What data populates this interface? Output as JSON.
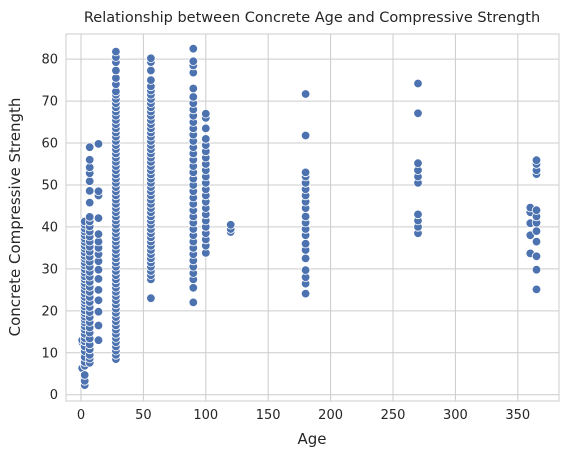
{
  "chart_data": {
    "type": "scatter",
    "title": "Relationship between Concrete Age and Compressive Strength",
    "xlabel": "Age",
    "ylabel": "Concrete Compressive Strength",
    "xlim": [
      -12,
      383
    ],
    "ylim": [
      -1.5,
      86
    ],
    "xticks": [
      0,
      50,
      100,
      150,
      200,
      250,
      300,
      350
    ],
    "yticks": [
      0,
      10,
      20,
      30,
      40,
      50,
      60,
      70,
      80
    ],
    "grid": true,
    "legend": "none",
    "point_color": "#4c72b0",
    "point_edge_color": "#ffffff",
    "background_color": "#ffffff",
    "grid_color": "#cccccc",
    "points": [
      [
        1,
        6.3
      ],
      [
        1,
        12.5
      ],
      [
        1,
        13
      ],
      [
        3,
        2.3
      ],
      [
        3,
        3.3
      ],
      [
        3,
        4.7
      ],
      [
        3,
        6.9
      ],
      [
        3,
        7.8
      ],
      [
        3,
        9.0
      ],
      [
        3,
        10.4
      ],
      [
        3,
        11.5
      ],
      [
        3,
        12.7
      ],
      [
        3,
        13.5
      ],
      [
        3,
        14.5
      ],
      [
        3,
        15.5
      ],
      [
        3,
        16.3
      ],
      [
        3,
        17.2
      ],
      [
        3,
        17.9
      ],
      [
        3,
        18.6
      ],
      [
        3,
        19.4
      ],
      [
        3,
        20.1
      ],
      [
        3,
        21.0
      ],
      [
        3,
        21.8
      ],
      [
        3,
        22.5
      ],
      [
        3,
        23.3
      ],
      [
        3,
        24.1
      ],
      [
        3,
        25.0
      ],
      [
        3,
        25.9
      ],
      [
        3,
        26.6
      ],
      [
        3,
        27.5
      ],
      [
        3,
        28.2
      ],
      [
        3,
        29.1
      ],
      [
        3,
        29.9
      ],
      [
        3,
        30.8
      ],
      [
        3,
        31.5
      ],
      [
        3,
        32.4
      ],
      [
        3,
        33.1
      ],
      [
        3,
        33.9
      ],
      [
        3,
        34.8
      ],
      [
        3,
        35.5
      ],
      [
        3,
        36.4
      ],
      [
        3,
        37.2
      ],
      [
        3,
        38.0
      ],
      [
        3,
        38.9
      ],
      [
        3,
        39.6
      ],
      [
        3,
        40.5
      ],
      [
        3,
        41.3
      ],
      [
        7,
        7.6
      ],
      [
        7,
        8.6
      ],
      [
        7,
        9.5
      ],
      [
        7,
        10.8
      ],
      [
        7,
        12.0
      ],
      [
        7,
        13.4
      ],
      [
        7,
        14.8
      ],
      [
        7,
        16.0
      ],
      [
        7,
        17.3
      ],
      [
        7,
        18.5
      ],
      [
        7,
        19.7
      ],
      [
        7,
        20.9
      ],
      [
        7,
        22.1
      ],
      [
        7,
        23.3
      ],
      [
        7,
        24.5
      ],
      [
        7,
        25.7
      ],
      [
        7,
        26.9
      ],
      [
        7,
        28.1
      ],
      [
        7,
        29.3
      ],
      [
        7,
        30.5
      ],
      [
        7,
        31.7
      ],
      [
        7,
        32.9
      ],
      [
        7,
        34.1
      ],
      [
        7,
        35.3
      ],
      [
        7,
        36.5
      ],
      [
        7,
        37.7
      ],
      [
        7,
        38.9
      ],
      [
        7,
        40.1
      ],
      [
        7,
        41.3
      ],
      [
        7,
        42.4
      ],
      [
        7,
        45.8
      ],
      [
        7,
        48.6
      ],
      [
        7,
        50.9
      ],
      [
        7,
        52.8
      ],
      [
        7,
        54.2
      ],
      [
        7,
        56.0
      ],
      [
        7,
        59.0
      ],
      [
        14,
        13.0
      ],
      [
        14,
        16.5
      ],
      [
        14,
        19.8
      ],
      [
        14,
        22.5
      ],
      [
        14,
        25.0
      ],
      [
        14,
        27.6
      ],
      [
        14,
        29.8
      ],
      [
        14,
        31.8
      ],
      [
        14,
        33.5
      ],
      [
        14,
        35.0
      ],
      [
        14,
        36.5
      ],
      [
        14,
        38.3
      ],
      [
        14,
        42.1
      ],
      [
        14,
        47.5
      ],
      [
        14,
        48.5
      ],
      [
        14,
        59.8
      ],
      [
        28,
        8.5
      ],
      [
        28,
        9.5
      ],
      [
        28,
        10.5
      ],
      [
        28,
        11.5
      ],
      [
        28,
        12.5
      ],
      [
        28,
        13.5
      ],
      [
        28,
        14.5
      ],
      [
        28,
        15.5
      ],
      [
        28,
        16.5
      ],
      [
        28,
        17.5
      ],
      [
        28,
        18.5
      ],
      [
        28,
        19.5
      ],
      [
        28,
        20.5
      ],
      [
        28,
        21.5
      ],
      [
        28,
        22.5
      ],
      [
        28,
        23.5
      ],
      [
        28,
        24.5
      ],
      [
        28,
        25.5
      ],
      [
        28,
        26.5
      ],
      [
        28,
        27.5
      ],
      [
        28,
        28.5
      ],
      [
        28,
        29.5
      ],
      [
        28,
        30.5
      ],
      [
        28,
        31.5
      ],
      [
        28,
        32.5
      ],
      [
        28,
        33.5
      ],
      [
        28,
        34.5
      ],
      [
        28,
        35.5
      ],
      [
        28,
        36.5
      ],
      [
        28,
        37.5
      ],
      [
        28,
        38.5
      ],
      [
        28,
        39.5
      ],
      [
        28,
        40.5
      ],
      [
        28,
        41.5
      ],
      [
        28,
        42.5
      ],
      [
        28,
        43.5
      ],
      [
        28,
        44.5
      ],
      [
        28,
        45.5
      ],
      [
        28,
        46.5
      ],
      [
        28,
        47.5
      ],
      [
        28,
        48.5
      ],
      [
        28,
        49.5
      ],
      [
        28,
        50.5
      ],
      [
        28,
        51.5
      ],
      [
        28,
        52.5
      ],
      [
        28,
        53.5
      ],
      [
        28,
        54.5
      ],
      [
        28,
        55.5
      ],
      [
        28,
        56.5
      ],
      [
        28,
        57.5
      ],
      [
        28,
        58.5
      ],
      [
        28,
        59.5
      ],
      [
        28,
        60.5
      ],
      [
        28,
        61.5
      ],
      [
        28,
        62.5
      ],
      [
        28,
        63.5
      ],
      [
        28,
        64.5
      ],
      [
        28,
        65.5
      ],
      [
        28,
        66.5
      ],
      [
        28,
        67.5
      ],
      [
        28,
        68.5
      ],
      [
        28,
        69.5
      ],
      [
        28,
        70.5
      ],
      [
        28,
        71.5
      ],
      [
        28,
        72.3
      ],
      [
        28,
        74.0
      ],
      [
        28,
        75.5
      ],
      [
        28,
        77.3
      ],
      [
        28,
        79.3
      ],
      [
        28,
        80.5
      ],
      [
        28,
        81.8
      ],
      [
        56,
        23.0
      ],
      [
        56,
        27.5
      ],
      [
        56,
        28.5
      ],
      [
        56,
        29.5
      ],
      [
        56,
        30.5
      ],
      [
        56,
        31.5
      ],
      [
        56,
        32.5
      ],
      [
        56,
        33.5
      ],
      [
        56,
        34.5
      ],
      [
        56,
        35.5
      ],
      [
        56,
        36.5
      ],
      [
        56,
        37.5
      ],
      [
        56,
        38.5
      ],
      [
        56,
        39.5
      ],
      [
        56,
        40.5
      ],
      [
        56,
        41.5
      ],
      [
        56,
        42.5
      ],
      [
        56,
        43.5
      ],
      [
        56,
        44.5
      ],
      [
        56,
        45.5
      ],
      [
        56,
        46.5
      ],
      [
        56,
        47.5
      ],
      [
        56,
        48.5
      ],
      [
        56,
        49.5
      ],
      [
        56,
        50.5
      ],
      [
        56,
        51.5
      ],
      [
        56,
        52.5
      ],
      [
        56,
        53.5
      ],
      [
        56,
        54.5
      ],
      [
        56,
        55.5
      ],
      [
        56,
        56.5
      ],
      [
        56,
        57.5
      ],
      [
        56,
        58.5
      ],
      [
        56,
        59.5
      ],
      [
        56,
        60.5
      ],
      [
        56,
        61.5
      ],
      [
        56,
        62.5
      ],
      [
        56,
        63.5
      ],
      [
        56,
        64.5
      ],
      [
        56,
        65.5
      ],
      [
        56,
        66.5
      ],
      [
        56,
        67.5
      ],
      [
        56,
        68.5
      ],
      [
        56,
        69.5
      ],
      [
        56,
        70.5
      ],
      [
        56,
        71.5
      ],
      [
        56,
        72.5
      ],
      [
        56,
        73.5
      ],
      [
        56,
        75.0
      ],
      [
        56,
        77.3
      ],
      [
        56,
        79.3
      ],
      [
        56,
        80.2
      ],
      [
        90,
        22.0
      ],
      [
        90,
        25.5
      ],
      [
        90,
        27.5
      ],
      [
        90,
        29.0
      ],
      [
        90,
        30.5
      ],
      [
        90,
        32.0
      ],
      [
        90,
        33.5
      ],
      [
        90,
        35.0
      ],
      [
        90,
        36.5
      ],
      [
        90,
        38.0
      ],
      [
        90,
        39.5
      ],
      [
        90,
        41.0
      ],
      [
        90,
        42.5
      ],
      [
        90,
        44.0
      ],
      [
        90,
        45.5
      ],
      [
        90,
        47.0
      ],
      [
        90,
        48.5
      ],
      [
        90,
        50.0
      ],
      [
        90,
        51.5
      ],
      [
        90,
        53.0
      ],
      [
        90,
        54.5
      ],
      [
        90,
        56.0
      ],
      [
        90,
        57.5
      ],
      [
        90,
        59.0
      ],
      [
        90,
        60.5
      ],
      [
        90,
        62.0
      ],
      [
        90,
        63.5
      ],
      [
        90,
        65.0
      ],
      [
        90,
        66.5
      ],
      [
        90,
        68.0
      ],
      [
        90,
        69.5
      ],
      [
        90,
        71.0
      ],
      [
        90,
        73.0
      ],
      [
        90,
        76.8
      ],
      [
        90,
        78.5
      ],
      [
        90,
        79.5
      ],
      [
        90,
        82.5
      ],
      [
        100,
        33.8
      ],
      [
        100,
        35.5
      ],
      [
        100,
        37.0
      ],
      [
        100,
        38.5
      ],
      [
        100,
        40.0
      ],
      [
        100,
        41.5
      ],
      [
        100,
        43.0
      ],
      [
        100,
        44.5
      ],
      [
        100,
        46.0
      ],
      [
        100,
        47.5
      ],
      [
        100,
        49.0
      ],
      [
        100,
        50.5
      ],
      [
        100,
        52.0
      ],
      [
        100,
        53.5
      ],
      [
        100,
        55.0
      ],
      [
        100,
        56.5
      ],
      [
        100,
        58.0
      ],
      [
        100,
        59.5
      ],
      [
        100,
        61.0
      ],
      [
        100,
        63.5
      ],
      [
        100,
        66.0
      ],
      [
        100,
        67.0
      ],
      [
        120,
        38.8
      ],
      [
        120,
        39.5
      ],
      [
        120,
        40.5
      ],
      [
        180,
        24.1
      ],
      [
        180,
        26.5
      ],
      [
        180,
        28.0
      ],
      [
        180,
        29.7
      ],
      [
        180,
        32.5
      ],
      [
        180,
        34.5
      ],
      [
        180,
        36.0
      ],
      [
        180,
        38.0
      ],
      [
        180,
        39.5
      ],
      [
        180,
        41.0
      ],
      [
        180,
        42.5
      ],
      [
        180,
        44.5
      ],
      [
        180,
        46.0
      ],
      [
        180,
        47.5
      ],
      [
        180,
        49.0
      ],
      [
        180,
        50.5
      ],
      [
        180,
        52.0
      ],
      [
        180,
        53.0
      ],
      [
        180,
        61.8
      ],
      [
        180,
        71.7
      ],
      [
        270,
        38.5
      ],
      [
        270,
        40.0
      ],
      [
        270,
        41.5
      ],
      [
        270,
        43.0
      ],
      [
        270,
        50.5
      ],
      [
        270,
        52.0
      ],
      [
        270,
        53.5
      ],
      [
        270,
        55.2
      ],
      [
        270,
        67.1
      ],
      [
        270,
        74.2
      ],
      [
        360,
        33.7
      ],
      [
        360,
        38.0
      ],
      [
        360,
        40.9
      ],
      [
        360,
        43.5
      ],
      [
        360,
        44.6
      ],
      [
        365,
        25.1
      ],
      [
        365,
        29.8
      ],
      [
        365,
        33.0
      ],
      [
        365,
        36.5
      ],
      [
        365,
        39.0
      ],
      [
        365,
        41.0
      ],
      [
        365,
        42.5
      ],
      [
        365,
        44.0
      ],
      [
        365,
        52.6
      ],
      [
        365,
        53.5
      ],
      [
        365,
        55.0
      ],
      [
        365,
        55.9
      ]
    ]
  }
}
